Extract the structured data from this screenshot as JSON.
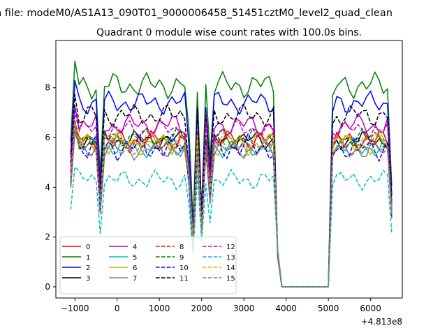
{
  "chart_data": {
    "type": "line",
    "suptitle": "n file: modeM0/AS1A13_090T01_9000006458_51451cztM0_level2_quad_clean",
    "title": "Quadrant 0 module wise count rates with 100.0s bins.",
    "xlabel": "",
    "ylabel": "",
    "offset_label": "+4.813e8",
    "xlim": [
      -1450,
      6750
    ],
    "ylim": [
      -0.45,
      9.9
    ],
    "xticks": [
      -1000,
      0,
      1000,
      2000,
      3000,
      4000,
      5000,
      6000
    ],
    "xtick_labels": [
      "−1000",
      "0",
      "1000",
      "2000",
      "3000",
      "4000",
      "5000",
      "6000"
    ],
    "yticks": [
      0,
      2,
      4,
      6,
      8
    ],
    "ytick_labels": [
      "0",
      "2",
      "4",
      "6",
      "8"
    ],
    "grid": false,
    "legend": {
      "placement": "lower-left",
      "columns": 4
    },
    "series": [
      {
        "name": "0",
        "color": "#ff0000",
        "dash": false,
        "base": 5.9,
        "amp": 0.3
      },
      {
        "name": "1",
        "color": "#008000",
        "dash": false,
        "base": 8.1,
        "amp": 0.4
      },
      {
        "name": "2",
        "color": "#0000ff",
        "dash": false,
        "base": 7.4,
        "amp": 0.35
      },
      {
        "name": "3",
        "color": "#000000",
        "dash": false,
        "base": 5.9,
        "amp": 0.3
      },
      {
        "name": "4",
        "color": "#bf00bf",
        "dash": false,
        "base": 6.5,
        "amp": 0.35
      },
      {
        "name": "5",
        "color": "#00bfbf",
        "dash": false,
        "base": 5.6,
        "amp": 0.3
      },
      {
        "name": "6",
        "color": "#bfbf00",
        "dash": false,
        "base": 5.7,
        "amp": 0.35
      },
      {
        "name": "7",
        "color": "#808080",
        "dash": false,
        "base": 5.5,
        "amp": 0.3
      },
      {
        "name": "8",
        "color": "#ff0000",
        "dash": true,
        "base": 5.8,
        "amp": 0.3
      },
      {
        "name": "9",
        "color": "#008000",
        "dash": true,
        "base": 6.0,
        "amp": 0.3
      },
      {
        "name": "10",
        "color": "#0000ff",
        "dash": true,
        "base": 5.6,
        "amp": 0.4
      },
      {
        "name": "11",
        "color": "#000000",
        "dash": true,
        "base": 6.9,
        "amp": 0.35
      },
      {
        "name": "12",
        "color": "#bf00bf",
        "dash": true,
        "base": 6.3,
        "amp": 0.3
      },
      {
        "name": "13",
        "color": "#00bfbf",
        "dash": true,
        "base": 4.3,
        "amp": 0.3
      },
      {
        "name": "14",
        "color": "#bfbf00",
        "dash": true,
        "base": 5.9,
        "amp": 0.3
      },
      {
        "name": "15",
        "color": "#808080",
        "dash": true,
        "base": 5.6,
        "amp": 0.3
      }
    ],
    "x_start": -1100,
    "x_end": 6500,
    "x_step": 100,
    "features": {
      "dips": [
        {
          "x": -400,
          "depth": 0.45
        },
        {
          "x": 1700,
          "depth": 0.25
        },
        {
          "x": 1800,
          "depth": 0.7
        },
        {
          "x": 2000,
          "depth": 0.6
        },
        {
          "x": 2200,
          "depth": 0.35
        }
      ],
      "gap_start": 3800,
      "gap_end": 5000,
      "gap_value": 0
    }
  }
}
